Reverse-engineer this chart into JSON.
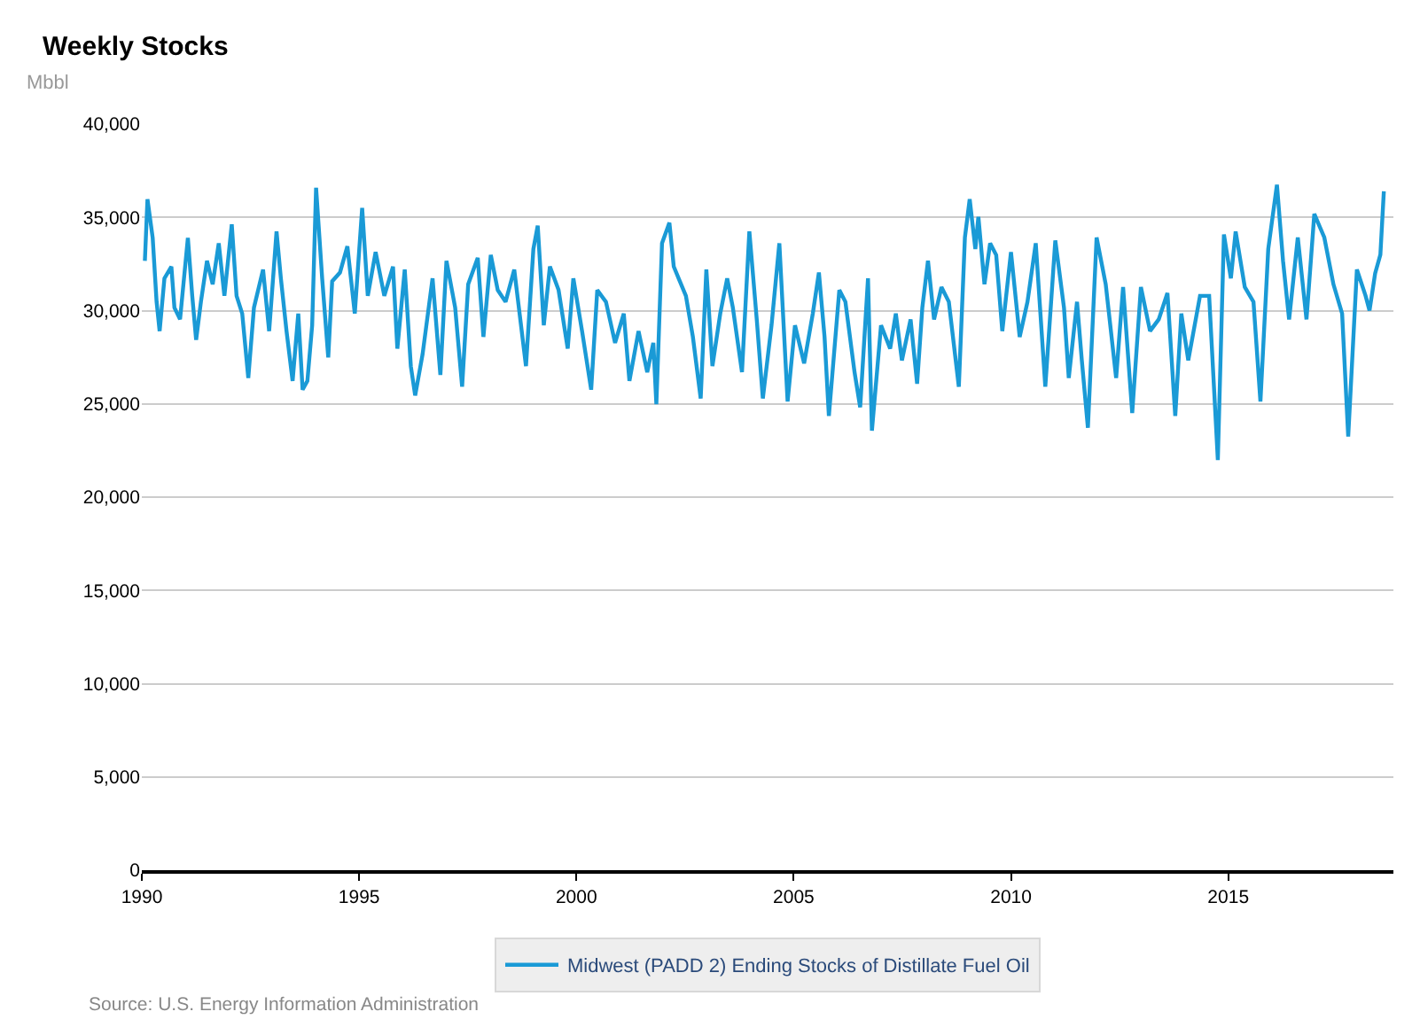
{
  "chart_data": {
    "type": "line",
    "title": "Weekly Stocks",
    "ylabel": "Mbbl",
    "annotations": [
      "Source: U.S. Energy Information Administration"
    ],
    "xlim": [
      1990,
      2018.8
    ],
    "xticks": [
      {
        "value": 1990,
        "label": "1990"
      },
      {
        "value": 1995,
        "label": "1995"
      },
      {
        "value": 2000,
        "label": "2000"
      },
      {
        "value": 2005,
        "label": "2005"
      },
      {
        "value": 2010,
        "label": "2010"
      },
      {
        "value": 2015,
        "label": "2015"
      }
    ],
    "ylim": [
      0,
      40000
    ],
    "yticks": [
      {
        "value": 0,
        "label": "0"
      },
      {
        "value": 5000,
        "label": "5,000"
      },
      {
        "value": 10000,
        "label": "10,000"
      },
      {
        "value": 15000,
        "label": "15,000"
      },
      {
        "value": 20000,
        "label": "20,000"
      },
      {
        "value": 25000,
        "label": "25,000"
      },
      {
        "value": 30000,
        "label": "30,000"
      },
      {
        "value": 35000,
        "label": "35,000"
      },
      {
        "value": 40000,
        "label": "40,000"
      }
    ],
    "grid": "y",
    "legend": "bottom",
    "marker": "none",
    "line_style": "solid",
    "series": [
      {
        "name": "Midwest (PADD 2) Ending Stocks of Distillate Fuel Oil",
        "color": "#1a9ad6",
        "x": [
          1990.07,
          1990.13,
          1990.25,
          1990.34,
          1990.41,
          1990.52,
          1990.68,
          1990.75,
          1990.88,
          1991.06,
          1991.16,
          1991.25,
          1991.36,
          1991.5,
          1991.63,
          1991.77,
          1991.9,
          1992.07,
          1992.18,
          1992.31,
          1992.45,
          1992.58,
          1992.79,
          1992.93,
          1993.1,
          1993.2,
          1993.33,
          1993.47,
          1993.6,
          1993.7,
          1993.81,
          1993.92,
          1994.01,
          1994.15,
          1994.29,
          1994.38,
          1994.56,
          1994.73,
          1994.9,
          1995.07,
          1995.2,
          1995.38,
          1995.58,
          1995.78,
          1995.88,
          1996.05,
          1996.19,
          1996.29,
          1996.46,
          1996.69,
          1996.87,
          1997.01,
          1997.21,
          1997.37,
          1997.51,
          1997.73,
          1997.86,
          1998.03,
          1998.19,
          1998.37,
          1998.57,
          1998.84,
          1999.01,
          1999.11,
          1999.25,
          1999.39,
          1999.59,
          1999.8,
          1999.93,
          2000.13,
          2000.34,
          2000.48,
          2000.68,
          2000.89,
          2001.09,
          2001.22,
          2001.43,
          2001.63,
          2001.77,
          2001.84,
          2001.97,
          2002.14,
          2002.24,
          2002.52,
          2002.68,
          2002.86,
          2002.99,
          2003.13,
          2003.31,
          2003.47,
          2003.6,
          2003.81,
          2003.98,
          2004.15,
          2004.29,
          2004.49,
          2004.67,
          2004.86,
          2005.03,
          2005.24,
          2005.44,
          2005.58,
          2005.71,
          2005.81,
          2006.05,
          2006.19,
          2006.4,
          2006.53,
          2006.71,
          2006.8,
          2007.01,
          2007.22,
          2007.35,
          2007.49,
          2007.69,
          2007.84,
          2007.96,
          2008.09,
          2008.23,
          2008.4,
          2008.57,
          2008.8,
          2008.94,
          2009.05,
          2009.18,
          2009.25,
          2009.39,
          2009.52,
          2009.66,
          2009.8,
          2010.0,
          2010.2,
          2010.38,
          2010.57,
          2010.79,
          2011.02,
          2011.22,
          2011.33,
          2011.52,
          2011.63,
          2011.77,
          2011.97,
          2012.18,
          2012.42,
          2012.58,
          2012.79,
          2012.99,
          2013.2,
          2013.4,
          2013.6,
          2013.78,
          2013.92,
          2014.08,
          2014.35,
          2014.56,
          2014.76,
          2014.9,
          2015.06,
          2015.17,
          2015.38,
          2015.58,
          2015.74,
          2015.92,
          2016.12,
          2016.26,
          2016.4,
          2016.6,
          2016.8,
          2016.98,
          2017.21,
          2017.42,
          2017.62,
          2017.76,
          2017.96,
          2018.16,
          2018.25,
          2018.38,
          2018.5,
          2018.58
        ],
        "values": [
          32670,
          35970,
          33900,
          30470,
          28900,
          31730,
          32360,
          30160,
          29530,
          33900,
          30790,
          28430,
          30470,
          32670,
          31410,
          33610,
          30790,
          34620,
          30790,
          29840,
          26390,
          30160,
          32200,
          28900,
          34240,
          31730,
          28900,
          26230,
          29840,
          25760,
          26230,
          29210,
          36590,
          31730,
          27490,
          31570,
          32040,
          33450,
          29840,
          35500,
          30790,
          33140,
          30790,
          32360,
          27960,
          32200,
          27020,
          25450,
          27650,
          31730,
          26550,
          32670,
          30160,
          25920,
          31410,
          32830,
          28590,
          32980,
          31100,
          30470,
          32200,
          27020,
          33300,
          34550,
          29210,
          32360,
          31100,
          27960,
          31730,
          28900,
          25760,
          31100,
          30470,
          28270,
          29840,
          26230,
          28900,
          26700,
          28270,
          24980,
          33610,
          34710,
          32360,
          30790,
          28590,
          25290,
          32200,
          27020,
          29840,
          31730,
          30160,
          26700,
          34240,
          29530,
          25290,
          29210,
          33610,
          25130,
          29210,
          27170,
          29840,
          32040,
          28590,
          24350,
          31100,
          30470,
          26700,
          24820,
          31730,
          23560,
          29210,
          27960,
          29840,
          27330,
          29530,
          26080,
          30160,
          32670,
          29530,
          31260,
          30470,
          25920,
          33920,
          35970,
          33300,
          35030,
          31410,
          33610,
          32980,
          28900,
          33140,
          28590,
          30470,
          33610,
          25920,
          33760,
          30160,
          26390,
          30470,
          27330,
          23720,
          33920,
          31410,
          26390,
          31260,
          24510,
          31260,
          28900,
          29530,
          30940,
          24350,
          29840,
          27330,
          30790,
          30790,
          21990,
          34080,
          31730,
          34240,
          31260,
          30470,
          25130,
          33300,
          36750,
          32670,
          29530,
          33920,
          29530,
          35180,
          33920,
          31410,
          29840,
          23250,
          32200,
          30790,
          30000,
          32000,
          33000,
          36400
        ]
      }
    ]
  }
}
